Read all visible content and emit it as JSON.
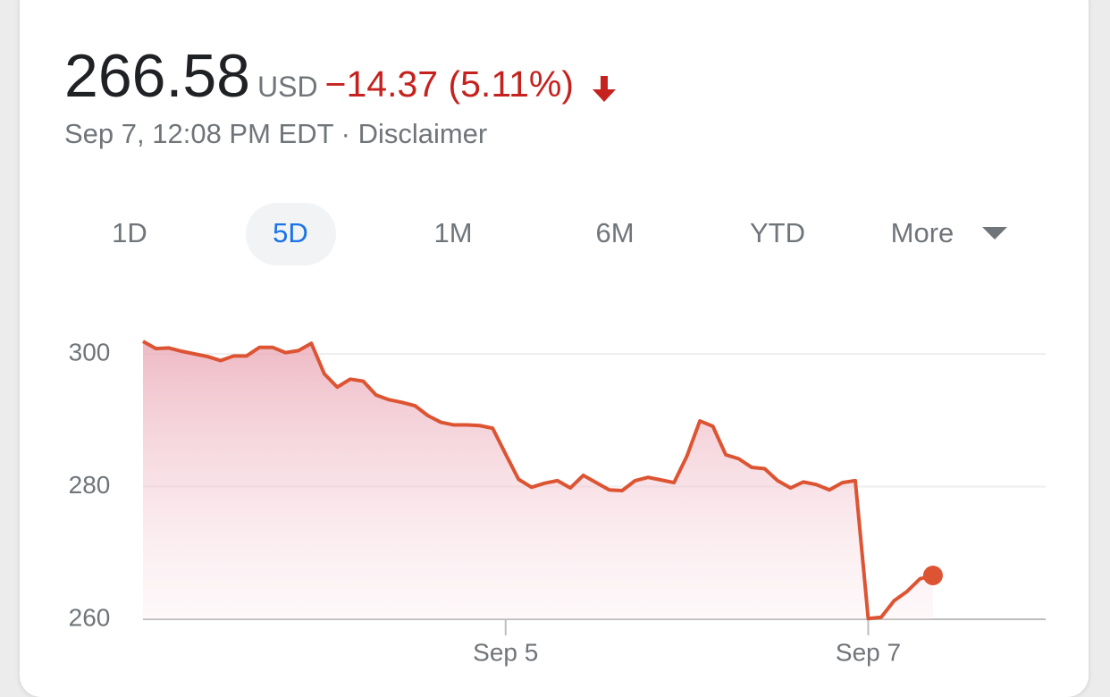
{
  "header": {
    "price": "266.58",
    "currency": "USD",
    "change": "−14.37 (5.11%)",
    "timestamp": "Sep 7, 12:08 PM EDT",
    "separator": "·",
    "disclaimer": "Disclaimer"
  },
  "tabs": {
    "items": [
      "1D",
      "5D",
      "1M",
      "6M",
      "YTD",
      "More"
    ],
    "selected": 1
  },
  "chart_data": {
    "type": "line",
    "x": [
      0,
      1,
      2,
      3,
      4,
      5,
      6,
      7,
      8,
      9,
      10,
      11,
      12,
      13,
      14,
      15,
      16,
      17,
      18,
      19,
      20,
      21,
      22,
      23,
      24,
      25,
      26,
      27,
      28,
      29,
      30,
      31,
      32,
      33,
      34,
      35,
      36,
      37,
      38,
      39,
      40,
      41,
      42,
      43,
      44,
      45,
      46,
      47,
      48,
      49,
      50,
      51,
      52,
      53,
      54,
      55,
      56,
      57,
      58,
      59,
      60,
      61
    ],
    "series": [
      {
        "color": "#dd5433",
        "values": [
          301.9,
          300.8,
          300.9,
          300.4,
          300.0,
          299.6,
          299.0,
          299.7,
          299.7,
          301.0,
          301.0,
          300.2,
          300.5,
          301.6,
          297.0,
          295.0,
          296.2,
          295.9,
          293.8,
          293.1,
          292.7,
          292.2,
          290.7,
          289.7,
          289.3,
          289.3,
          289.2,
          288.8,
          284.9,
          281.1,
          279.9,
          280.5,
          280.9,
          279.8,
          281.7,
          280.6,
          279.5,
          279.4,
          280.9,
          281.4,
          281.0,
          280.6,
          284.6,
          289.9,
          289.1,
          284.8,
          284.2,
          282.9,
          282.7,
          280.9,
          279.8,
          280.7,
          280.3,
          279.5,
          280.6,
          280.9,
          260.1,
          260.3,
          262.8,
          264.2,
          266.1,
          266.6
        ]
      }
    ],
    "xlim": [
      0,
      69.7
    ],
    "ylim": [
      260,
      305
    ],
    "xticks": [
      {
        "value": 28,
        "label": "Sep 5"
      },
      {
        "value": 56,
        "label": "Sep 7"
      }
    ],
    "yticks": [
      260,
      280,
      300
    ],
    "grid": true
  }
}
